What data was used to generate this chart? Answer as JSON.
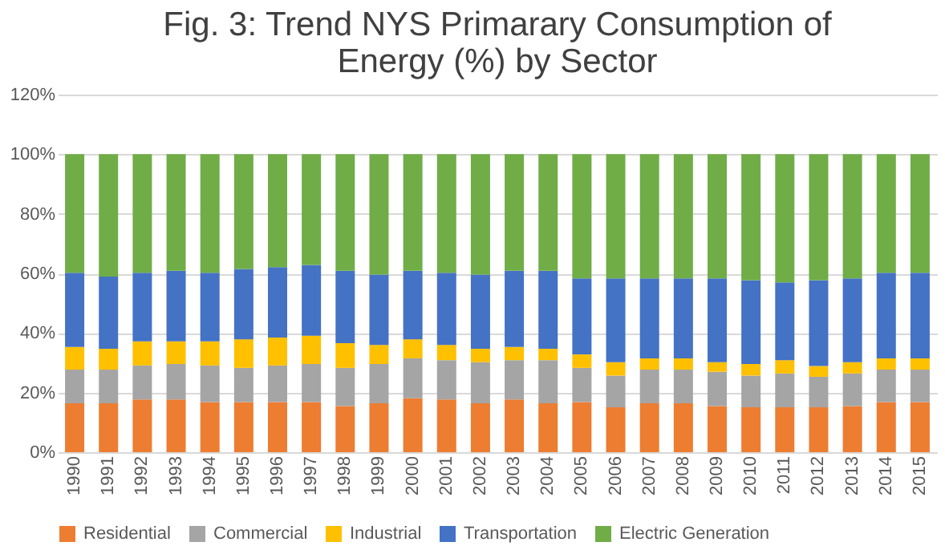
{
  "chart_data": {
    "type": "bar",
    "stacked": true,
    "title": [
      "Fig. 3: Trend NYS Primarary Consumption of",
      "Energy (%) by Sector"
    ],
    "categories": [
      "1990",
      "1991",
      "1992",
      "1993",
      "1994",
      "1995",
      "1996",
      "1997",
      "1998",
      "1999",
      "2000",
      "2001",
      "2002",
      "2003",
      "2004",
      "2005",
      "2006",
      "2007",
      "2008",
      "2009",
      "2010",
      "2011",
      "2012",
      "2013",
      "2014",
      "2015"
    ],
    "series": [
      {
        "name": "Residential",
        "color": "#ed7d31",
        "values": [
          16.4,
          16.4,
          17.7,
          17.7,
          16.8,
          16.8,
          16.8,
          16.8,
          15.5,
          16.4,
          18.1,
          17.7,
          16.4,
          17.7,
          16.4,
          16.8,
          15.1,
          16.4,
          16.4,
          15.5,
          15.1,
          15.1,
          15.1,
          15.5,
          16.8,
          16.8
        ]
      },
      {
        "name": "Commercial",
        "color": "#a5a5a5",
        "values": [
          11.3,
          11.3,
          11.4,
          11.9,
          12.3,
          11.5,
          12.3,
          12.8,
          12.8,
          13.2,
          13.4,
          13.2,
          13.8,
          13.2,
          14.5,
          11.5,
          10.6,
          11.3,
          11.3,
          11.5,
          10.6,
          11.3,
          10.2,
          10.9,
          10.9,
          10.9
        ]
      },
      {
        "name": "Industrial",
        "color": "#ffc000",
        "values": [
          7.6,
          7.0,
          8.1,
          7.6,
          8.1,
          9.6,
          9.4,
          9.5,
          8.3,
          6.4,
          6.4,
          5.1,
          4.5,
          4.4,
          3.8,
          4.5,
          4.5,
          3.8,
          3.8,
          3.2,
          3.9,
          4.5,
          3.6,
          3.8,
          3.8,
          3.8
        ]
      },
      {
        "name": "Transportation",
        "color": "#4472c4",
        "values": [
          24.9,
          24.2,
          23.0,
          23.7,
          23.0,
          23.6,
          23.6,
          23.7,
          24.3,
          23.6,
          23.0,
          24.2,
          24.9,
          25.6,
          26.2,
          25.5,
          28.1,
          26.8,
          26.8,
          28.1,
          28.1,
          26.1,
          28.8,
          28.1,
          28.7,
          28.7
        ]
      },
      {
        "name": "Electric Generation",
        "color": "#70ad47",
        "values": [
          39.8,
          41.1,
          39.8,
          39.1,
          39.8,
          38.5,
          37.9,
          37.2,
          39.1,
          40.4,
          39.1,
          39.8,
          40.4,
          39.1,
          39.1,
          41.7,
          41.7,
          41.7,
          41.7,
          41.7,
          42.3,
          43.0,
          42.3,
          41.7,
          39.8,
          39.8
        ]
      }
    ],
    "ylim": [
      0,
      120
    ],
    "yticks": [
      {
        "value": 0,
        "label": "0%"
      },
      {
        "value": 20,
        "label": "20%"
      },
      {
        "value": 40,
        "label": "40%"
      },
      {
        "value": 60,
        "label": "60%"
      },
      {
        "value": 80,
        "label": "80%"
      },
      {
        "value": 100,
        "label": "100%"
      },
      {
        "value": 120,
        "label": "120%"
      }
    ],
    "grid": "y",
    "legend": "bottom"
  }
}
